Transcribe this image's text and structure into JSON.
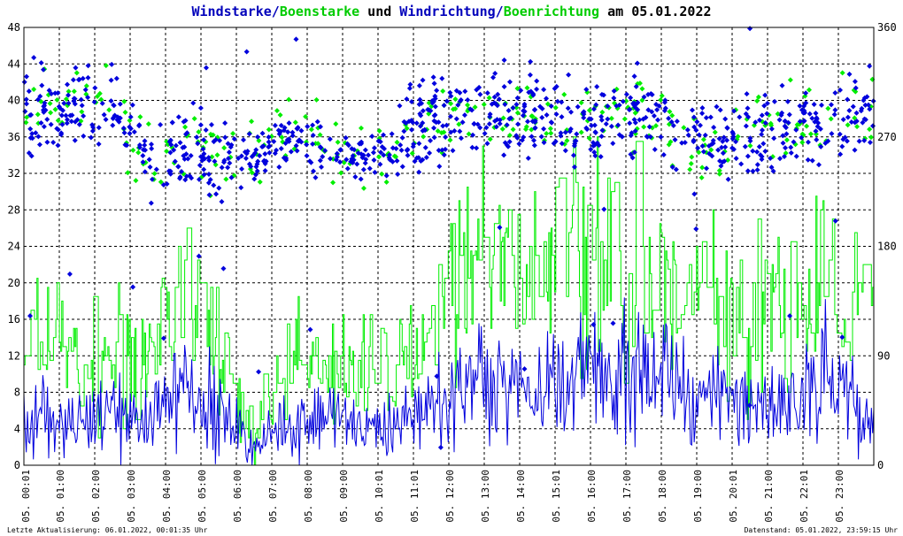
{
  "title": {
    "part1": "Windstarke",
    "sep1": "/",
    "part2": "Boenstarke",
    "mid": " und ",
    "part3": "Windrichtung",
    "sep2": "/",
    "part4": "Boenrichtung",
    "tail": " am 05.01.2022"
  },
  "colors": {
    "wind": "#0000dd",
    "gust": "#00ee00",
    "grid": "#000000",
    "text": "#000000"
  },
  "footer": {
    "left": "Letzte Aktualisierung: 06.01.2022, 00:01:35 Uhr",
    "right": "Datenstand: 05.01.2022, 23:59:15 Uhr"
  },
  "chart_data": {
    "type": "line",
    "x_labels": [
      "05. 00:01",
      "05. 01:00",
      "05. 02:00",
      "05. 03:00",
      "05. 04:00",
      "05. 05:00",
      "05. 06:00",
      "05. 07:00",
      "05. 08:00",
      "05. 09:00",
      "05. 10:01",
      "05. 11:01",
      "05. 12:00",
      "05. 13:00",
      "05. 14:00",
      "05. 15:01",
      "05. 16:00",
      "05. 17:00",
      "05. 18:00",
      "05. 19:00",
      "05. 20:01",
      "05. 21:00",
      "05. 22:01",
      "05. 23:00"
    ],
    "y_left_ticks": [
      "0",
      "4",
      "8",
      "12",
      "16",
      "20",
      "24",
      "28",
      "32",
      "36",
      "40",
      "44",
      "48"
    ],
    "y_right_ticks": [
      "0",
      "90",
      "180",
      "270",
      "360"
    ],
    "ylim_left": [
      0,
      48
    ],
    "ylim_right": [
      0,
      360
    ],
    "grid": true,
    "hourly_mean_windstarke": [
      5,
      4,
      5,
      5,
      9,
      6,
      2,
      5,
      5,
      4,
      4,
      6,
      10,
      10,
      9,
      10,
      10,
      10,
      8,
      7,
      8,
      7,
      10,
      6
    ],
    "hourly_mean_boenstarke": [
      14,
      11,
      12,
      12,
      22,
      11,
      3,
      12,
      12,
      11,
      11,
      17,
      22,
      22,
      21,
      22,
      22,
      22,
      19,
      18,
      18,
      17,
      22,
      15
    ],
    "hourly_mean_windrichtung": [
      290,
      295,
      295,
      250,
      260,
      250,
      250,
      270,
      260,
      255,
      260,
      290,
      285,
      285,
      290,
      280,
      285,
      290,
      270,
      260,
      275,
      280,
      285,
      290
    ],
    "hourly_mean_boenrichtung": [
      290,
      295,
      295,
      250,
      260,
      255,
      250,
      270,
      260,
      255,
      260,
      285,
      285,
      290,
      290,
      280,
      285,
      290,
      270,
      260,
      275,
      280,
      285,
      290
    ]
  }
}
